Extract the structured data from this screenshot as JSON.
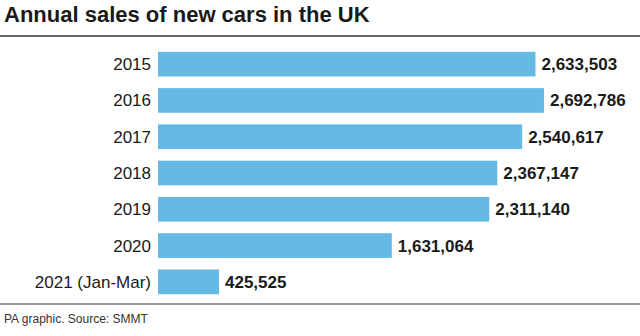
{
  "chart_data": {
    "type": "bar",
    "orientation": "horizontal",
    "title": "Annual sales of new cars in the UK",
    "source": "PA graphic. Source: SMMT",
    "categories": [
      "2015",
      "2016",
      "2017",
      "2018",
      "2019",
      "2020",
      "2021 (Jan-Mar)"
    ],
    "values": [
      2633503,
      2692786,
      2540617,
      2367147,
      2311140,
      1631064,
      425525
    ],
    "value_labels": [
      "2,633,503",
      "2,692,786",
      "2,540,617",
      "2,367,147",
      "2,311,140",
      "1,631,064",
      "425,525"
    ],
    "color": "#64b9e5",
    "xlim": [
      0,
      3000000
    ],
    "grid": false,
    "data_labels": true,
    "tick_labels": false
  }
}
